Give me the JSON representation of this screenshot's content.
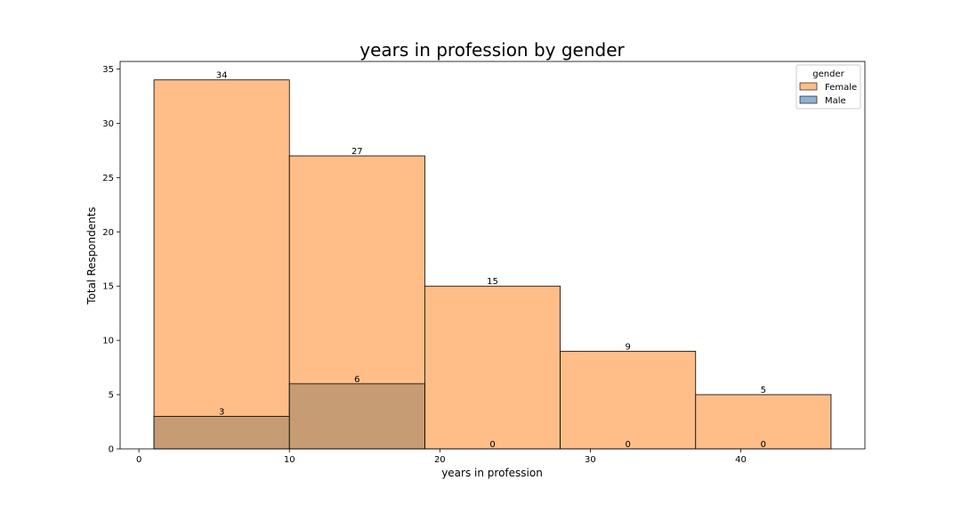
{
  "chart_data": {
    "type": "bar",
    "title": "years in profession by gender",
    "xlabel": "years in profession",
    "ylabel": "Total Respondents",
    "xlim": [
      -1.25,
      48.25
    ],
    "ylim": [
      0,
      35.7
    ],
    "x_ticks": [
      0,
      10,
      20,
      30,
      40
    ],
    "y_ticks": [
      0,
      5,
      10,
      15,
      20,
      25,
      30,
      35
    ],
    "bin_edges": [
      1,
      10,
      19,
      28,
      37,
      46
    ],
    "series": [
      {
        "name": "Female",
        "color": "#ffbe88",
        "values": [
          34,
          27,
          15,
          9,
          5
        ]
      },
      {
        "name": "Male",
        "color": "#8fb1d6",
        "values": [
          3,
          6,
          0,
          0,
          0
        ]
      }
    ],
    "overlap_color": "#c69c74",
    "legend": {
      "title": "gender",
      "position": "top-right"
    },
    "grid": false
  }
}
